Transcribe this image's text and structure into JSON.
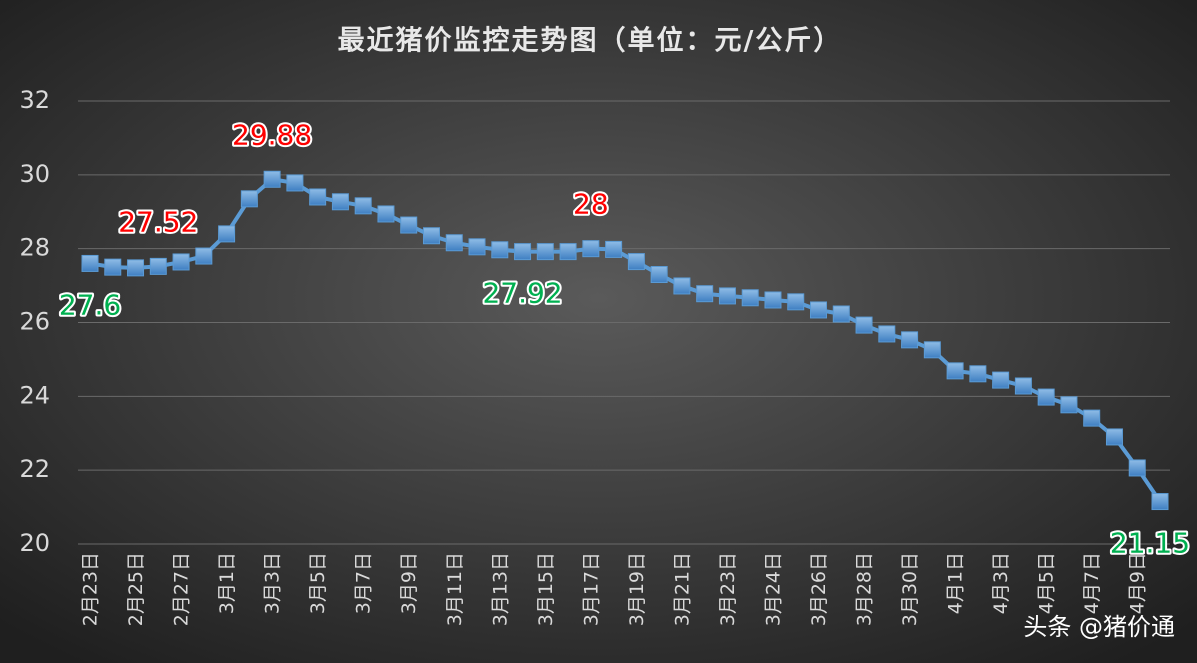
{
  "chart_data": {
    "type": "line",
    "title": "最近猪价监控走势图（单位：元/公斤）",
    "categories": [
      "2月23日",
      null,
      "2月25日",
      null,
      "2月27日",
      null,
      "3月1日",
      null,
      "3月3日",
      null,
      "3月5日",
      null,
      "3月7日",
      null,
      "3月9日",
      null,
      "3月11日",
      null,
      "3月13日",
      null,
      "3月15日",
      null,
      "3月17日",
      null,
      "3月19日",
      null,
      "3月21日",
      null,
      "3月23日",
      null,
      "3月24日",
      null,
      "3月26日",
      null,
      "3月28日",
      null,
      "3月30日",
      null,
      "4月1日",
      null,
      "4月3日",
      null,
      "4月5日",
      null,
      "4月7日",
      null,
      "4月9日",
      null
    ],
    "values": [
      27.6,
      27.5,
      27.48,
      27.52,
      27.64,
      27.8,
      28.4,
      29.35,
      29.88,
      29.78,
      29.4,
      29.27,
      29.16,
      28.94,
      28.64,
      28.35,
      28.16,
      28.05,
      27.97,
      27.92,
      27.92,
      27.92,
      28,
      27.98,
      27.65,
      27.3,
      26.99,
      26.78,
      26.72,
      26.67,
      26.61,
      26.56,
      26.34,
      26.23,
      25.93,
      25.69,
      25.53,
      25.26,
      24.69,
      24.61,
      24.44,
      24.28,
      23.98,
      23.77,
      23.41,
      22.9,
      22.06,
      21.15
    ],
    "value_labels": [
      "27.6",
      null,
      null,
      "27.52",
      null,
      null,
      null,
      null,
      "29.88",
      null,
      null,
      null,
      null,
      null,
      null,
      null,
      null,
      null,
      null,
      "27.92",
      null,
      null,
      "28",
      null,
      null,
      null,
      null,
      null,
      null,
      null,
      null,
      null,
      null,
      null,
      null,
      null,
      null,
      null,
      null,
      null,
      null,
      null,
      null,
      null,
      null,
      null,
      null,
      "21.15"
    ],
    "value_label_colors": [
      "#00b050",
      null,
      null,
      "#ff0000",
      null,
      null,
      null,
      null,
      "#ff0000",
      null,
      null,
      null,
      null,
      null,
      null,
      null,
      null,
      null,
      null,
      "#00b050",
      null,
      null,
      "#ff0000",
      null,
      null,
      null,
      null,
      null,
      null,
      null,
      null,
      null,
      null,
      null,
      null,
      null,
      null,
      null,
      null,
      null,
      null,
      null,
      null,
      null,
      null,
      null,
      null,
      "#00b050"
    ],
    "color": "#5b9bd5",
    "ylim": [
      20,
      32
    ],
    "yticks": [
      20,
      22,
      24,
      26,
      28,
      30,
      32
    ],
    "grid": true,
    "watermark": "头条 @猪价通"
  }
}
